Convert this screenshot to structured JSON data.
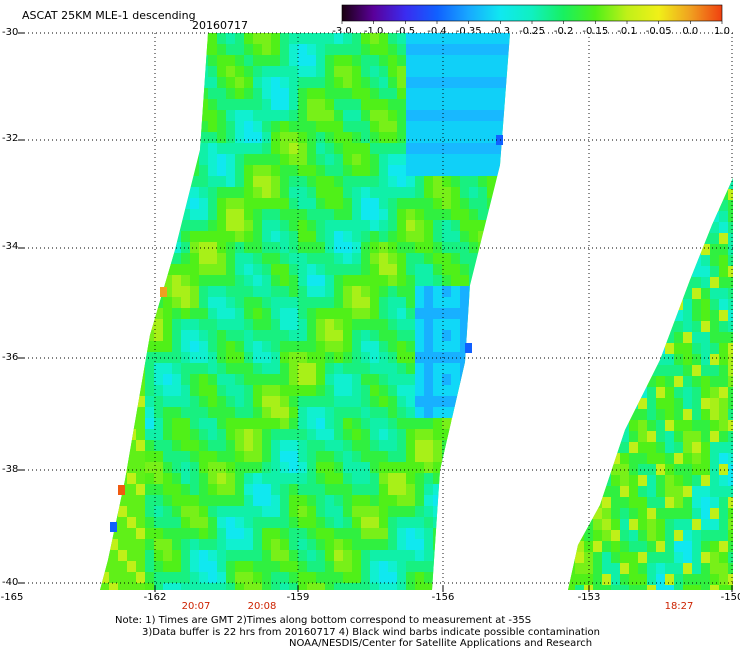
{
  "title": "ASCAT 25KM MLE-1 descending",
  "date": "20160717",
  "colorbar": {
    "labels": [
      "-3.0",
      "-1.0",
      "-0.5",
      "-0.4",
      "-0.35",
      "-0.3",
      "-0.25",
      "-0.2",
      "-0.15",
      "-0.1",
      "-0.05",
      "0.0",
      "1.0"
    ],
    "colors": [
      "#1a0010",
      "#5a009a",
      "#3a2cf0",
      "#1060ff",
      "#18a8ff",
      "#10e8f0",
      "#10f0c0",
      "#18f060",
      "#50f018",
      "#c0f018",
      "#f0f018",
      "#f0a020",
      "#f04010"
    ]
  },
  "y_axis": {
    "labels": [
      "-30",
      "-32",
      "-34",
      "-36",
      "-38",
      "-40"
    ]
  },
  "x_axis": {
    "labels": [
      "-165",
      "-162",
      "-159",
      "-156",
      "-153",
      "-150"
    ]
  },
  "times": [
    "20:07",
    "20:08",
    "18:27"
  ],
  "notes": [
    "Note: 1) Times are GMT 2)Times along bottom correspond to measurement at -35S",
    "3)Data buffer is 22 hrs from 20160717 4) Black wind barbs indicate possible contamination",
    "NOAA/NESDIS/Center for Satellite Applications and Research"
  ]
}
